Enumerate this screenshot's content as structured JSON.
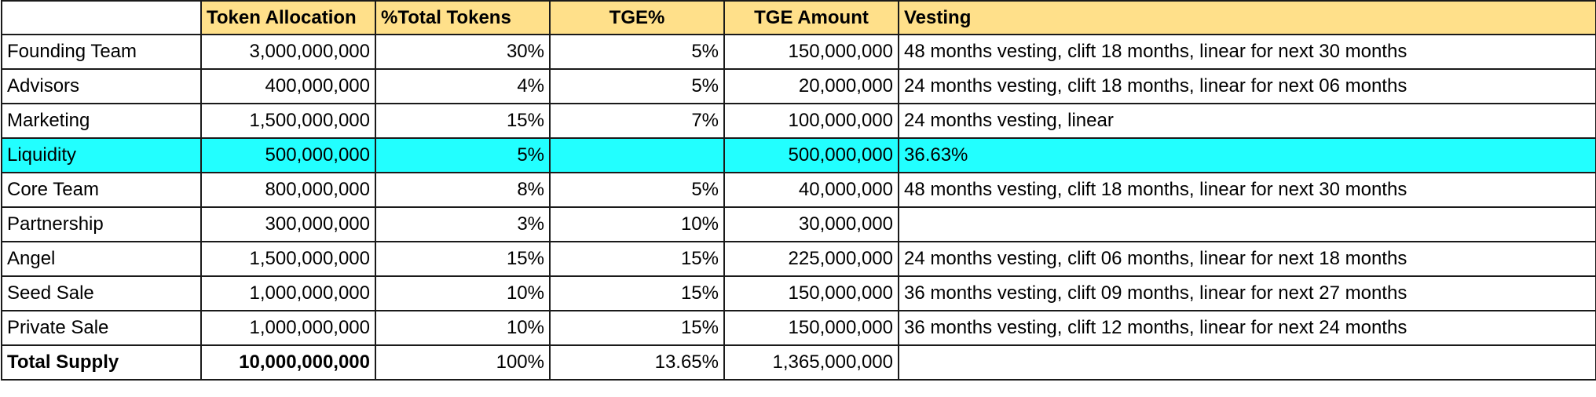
{
  "columns": [
    "",
    "Token Allocation",
    "%Total Tokens",
    "TGE%",
    "TGE Amount",
    "Vesting"
  ],
  "colors": {
    "header_bg": "#ffe08a",
    "highlight_row": "#22ffff"
  },
  "rows": [
    {
      "name": "Founding Team",
      "allocation": "3,000,000,000",
      "pct": "30%",
      "tge_pct": "5%",
      "tge_amount": "150,000,000",
      "vesting": "48 months vesting, clift 18 months, linear for next 30 months"
    },
    {
      "name": "Advisors",
      "allocation": "400,000,000",
      "pct": "4%",
      "tge_pct": "5%",
      "tge_amount": "20,000,000",
      "vesting": "24 months vesting, clift 18 months, linear for next 06 months"
    },
    {
      "name": "Marketing",
      "allocation": "1,500,000,000",
      "pct": "15%",
      "tge_pct": "7%",
      "tge_amount": "100,000,000",
      "vesting": "24 months vesting, linear"
    },
    {
      "name": "Liquidity",
      "allocation": "500,000,000",
      "pct": "5%",
      "tge_pct": "",
      "tge_amount": "500,000,000",
      "vesting": "36.63%"
    },
    {
      "name": "Core Team",
      "allocation": "800,000,000",
      "pct": "8%",
      "tge_pct": "5%",
      "tge_amount": "40,000,000",
      "vesting": "48 months vesting, clift 18 months, linear for next 30 months"
    },
    {
      "name": "Partnership",
      "allocation": "300,000,000",
      "pct": "3%",
      "tge_pct": "10%",
      "tge_amount": "30,000,000",
      "vesting": ""
    },
    {
      "name": "Angel",
      "allocation": "1,500,000,000",
      "pct": "15%",
      "tge_pct": "15%",
      "tge_amount": "225,000,000",
      "vesting": "24 months vesting, clift 06 months, linear for next 18 months"
    },
    {
      "name": "Seed Sale",
      "allocation": "1,000,000,000",
      "pct": "10%",
      "tge_pct": "15%",
      "tge_amount": "150,000,000",
      "vesting": "36 months vesting, clift 09 months, linear for next 27 months"
    },
    {
      "name": "Private Sale",
      "allocation": "1,000,000,000",
      "pct": "10%",
      "tge_pct": "15%",
      "tge_amount": "150,000,000",
      "vesting": "36 months vesting, clift 12 months, linear for next 24 months"
    },
    {
      "name": "Total Supply",
      "allocation": "10,000,000,000",
      "pct": "100%",
      "tge_pct": "13.65%",
      "tge_amount": "1,365,000,000",
      "vesting": ""
    }
  ]
}
